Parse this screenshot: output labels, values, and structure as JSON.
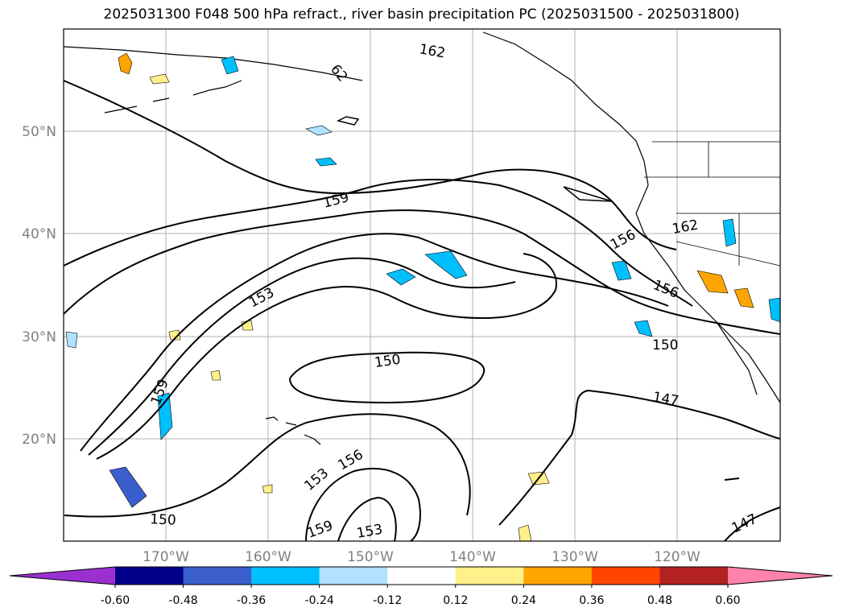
{
  "title": "2025031300 F048 500 hPa refract., river basin precipitation PC (2025031500 - 2025031800)",
  "map": {
    "lat_labels": [
      "50°N",
      "40°N",
      "30°N",
      "20°N"
    ],
    "lon_labels": [
      "170°W",
      "160°W",
      "150°W",
      "140°W",
      "130°W",
      "120°W"
    ],
    "contour_labels": [
      "162",
      "62",
      "159",
      "156",
      "162",
      "153",
      "156",
      "159",
      "150",
      "150",
      "147",
      "159",
      "153",
      "156",
      "153",
      "159",
      "153",
      "150",
      "147"
    ]
  },
  "colorbar": {
    "ticks": [
      "-0.60",
      "-0.48",
      "-0.36",
      "-0.24",
      "-0.12",
      "0.12",
      "0.24",
      "0.36",
      "0.48",
      "0.60"
    ],
    "colors": [
      "#9b30d0",
      "#00008b",
      "#3a5fcd",
      "#00bfff",
      "#b0e2ff",
      "#ffffff",
      "#fff08a",
      "#ffa500",
      "#ff4500",
      "#b22222",
      "#ff82ab"
    ]
  },
  "legend": {
    "positive_color": "#ffa500",
    "negative_color": "#00bfff"
  }
}
